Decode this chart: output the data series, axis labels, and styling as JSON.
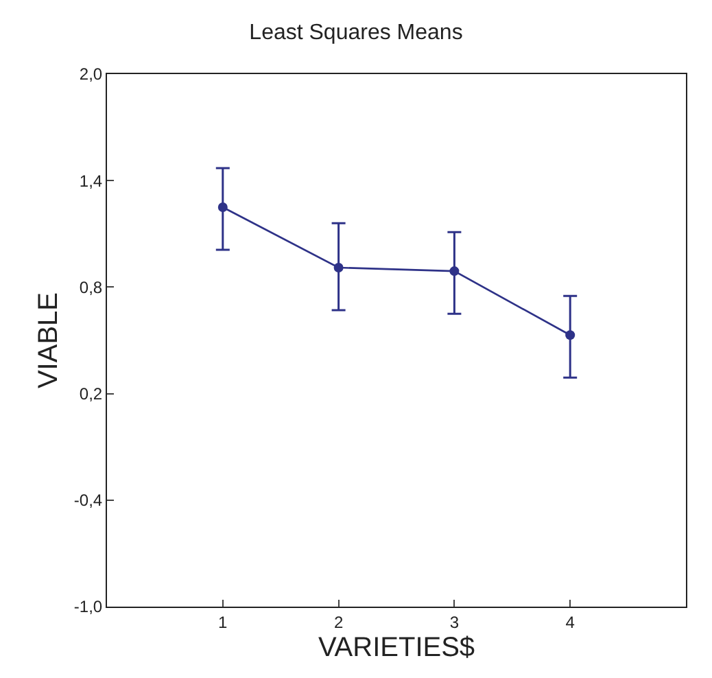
{
  "chart_data": {
    "type": "line",
    "title": "Least Squares Means",
    "xlabel": "VARIETIES$",
    "ylabel": "VIABLE",
    "x": [
      1,
      2,
      3,
      4
    ],
    "series": [
      {
        "color": "#2e3288",
        "values": [
          1.25,
          0.91,
          0.89,
          0.53
        ],
        "errors": [
          [
            1.01,
            1.47
          ],
          [
            0.67,
            1.16
          ],
          [
            0.65,
            1.11
          ],
          [
            0.29,
            0.75
          ]
        ]
      }
    ],
    "xlim": [
      0,
      5
    ],
    "xticks": [
      1,
      2,
      3,
      4
    ],
    "ylim": [
      -1.0,
      2.0
    ],
    "yticks": [
      {
        "value": -1.0,
        "label": "-1,0"
      },
      {
        "value": -0.4,
        "label": "-0,4"
      },
      {
        "value": 0.2,
        "label": "0,2"
      },
      {
        "value": 0.8,
        "label": "0,8"
      },
      {
        "value": 1.4,
        "label": "1,4"
      },
      {
        "value": 2.0,
        "label": "2,0"
      }
    ],
    "legend": false,
    "marker": "circle",
    "line_style": "solid"
  }
}
